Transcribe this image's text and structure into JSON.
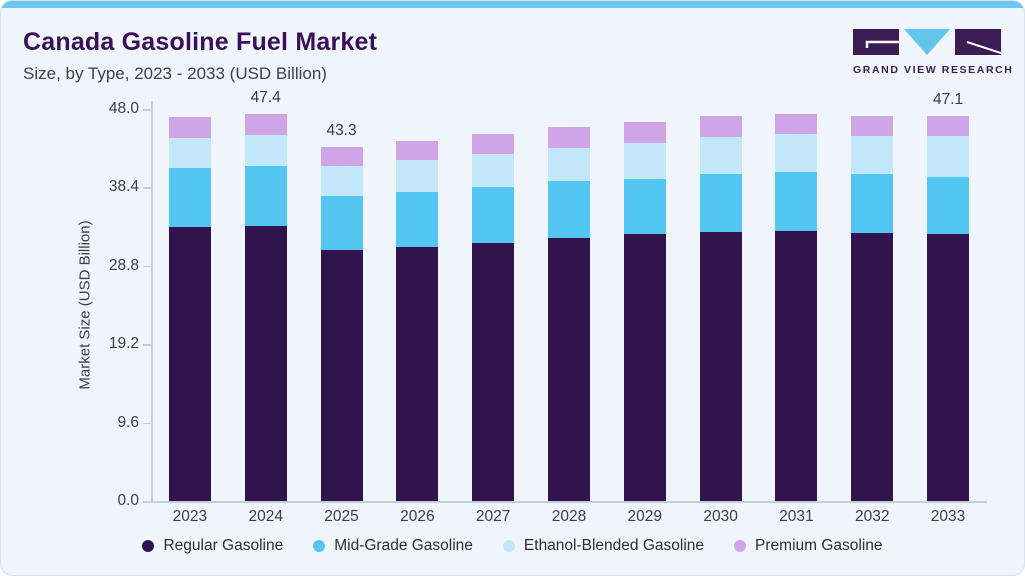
{
  "header": {
    "title": "Canada Gasoline Fuel Market",
    "subtitle": "Size, by Type, 2023 - 2033 (USD Billion)"
  },
  "logo": {
    "brand": "GRAND VIEW RESEARCH",
    "block_color": "#3b1d54",
    "triangle_color": "#62c5ea"
  },
  "colors": {
    "card_background": "#eff5fa",
    "top_strip": "#6cc8ee",
    "title_text": "#3a1156",
    "axis_text": "#3e3e46",
    "spine": "#c4ced8"
  },
  "chart_data": {
    "type": "bar",
    "stacked": true,
    "title": "Canada Gasoline Fuel Market Size, by Type, 2023 - 2033 (USD Billion)",
    "xlabel": "",
    "ylabel": "Market Size (USD Billion)",
    "ylim": [
      0,
      48
    ],
    "yticks": [
      "48.0",
      "38.4",
      "28.8",
      "19.2",
      "9.6",
      "0.0"
    ],
    "grid": false,
    "legend_position": "bottom",
    "categories": [
      2023,
      2024,
      2025,
      2026,
      2027,
      2028,
      2029,
      2030,
      2031,
      2032,
      2033
    ],
    "series": [
      {
        "name": "Regular Gasoline",
        "color": "#31134e",
        "values": [
          33.6,
          33.7,
          30.7,
          31.1,
          31.6,
          32.2,
          32.7,
          32.9,
          33.1,
          32.8,
          32.7
        ]
      },
      {
        "name": "Mid-Grade Gasoline",
        "color": "#53c6f1",
        "values": [
          7.2,
          7.3,
          6.6,
          6.7,
          6.9,
          7.0,
          6.7,
          7.1,
          7.2,
          7.2,
          7.0
        ]
      },
      {
        "name": "Ethanol-Blended Gasoline",
        "color": "#c2e7f8",
        "values": [
          3.6,
          3.8,
          3.7,
          3.9,
          4.0,
          4.0,
          4.4,
          4.6,
          4.6,
          4.7,
          5.0
        ]
      },
      {
        "name": "Premium Gasoline",
        "color": "#d0a5e8",
        "values": [
          2.6,
          2.6,
          2.3,
          2.4,
          2.4,
          2.6,
          2.6,
          2.5,
          2.5,
          2.5,
          2.4
        ]
      }
    ],
    "totals": [
      47.0,
      47.4,
      43.3,
      44.1,
      44.9,
      45.8,
      46.4,
      47.1,
      47.4,
      47.2,
      47.1
    ],
    "totals_labeled": {
      "2024": "47.4",
      "2025": "43.3",
      "2033": "47.1"
    }
  }
}
